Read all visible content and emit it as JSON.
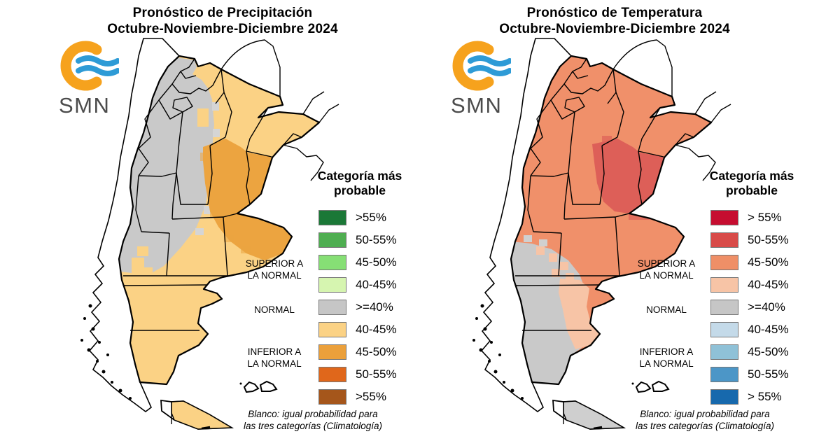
{
  "panels": [
    {
      "title_line1": "Pronóstico de Precipitación",
      "title_line2": "Octubre-Noviembre-Diciembre 2024",
      "logo_text": "SMN",
      "legend": {
        "header_line1": "Categoría más",
        "header_line2": "probable",
        "rows": [
          {
            "label": ">55%",
            "color": "#1b7837"
          },
          {
            "label": "50-55%",
            "color": "#4fae51"
          },
          {
            "label": "45-50%",
            "color": "#86df75"
          },
          {
            "label": "40-45%",
            "color": "#d6f5b0"
          },
          {
            "label": ">=40%",
            "color": "#c6c6c6"
          },
          {
            "label": "40-45%",
            "color": "#fbd285"
          },
          {
            "label": "45-50%",
            "color": "#eba03b"
          },
          {
            "label": "50-55%",
            "color": "#e0671b"
          },
          {
            "label": ">55%",
            "color": "#a5561b"
          }
        ],
        "side_labels": [
          {
            "line1": "SUPERIOR A",
            "line2": "LA NORMAL"
          },
          {
            "line1": "NORMAL",
            "line2": ""
          },
          {
            "line1": "INFERIOR A",
            "line2": "LA NORMAL"
          }
        ]
      },
      "note_line1": "Blanco: igual probabilidad para",
      "note_line2": "las tres categorías (Climatología)",
      "map": {
        "base": "#fbd285",
        "gray": "#c9c9c9",
        "highlight": "#eca440",
        "artifact_gray": "#d5d5d5",
        "coast_patch": "#fbd285",
        "tdf": "#fbd285",
        "water": "#ffffff"
      }
    },
    {
      "title_line1": "Pronóstico de Temperatura",
      "title_line2": "Octubre-Noviembre-Diciembre 2024",
      "logo_text": "SMN",
      "legend": {
        "header_line1": "Categoría más",
        "header_line2": "probable",
        "rows": [
          {
            "label": "> 55%",
            "color": "#c60d30"
          },
          {
            "label": "50-55%",
            "color": "#d84b49"
          },
          {
            "label": "45-50%",
            "color": "#ef8f67"
          },
          {
            "label": "40-45%",
            "color": "#f7c4a6"
          },
          {
            "label": ">=40%",
            "color": "#c6c6c6"
          },
          {
            "label": "40-45%",
            "color": "#c4dae9"
          },
          {
            "label": "45-50%",
            "color": "#8fc1d7"
          },
          {
            "label": "50-55%",
            "color": "#4c96c7"
          },
          {
            "label": "> 55%",
            "color": "#1769ad"
          }
        ],
        "side_labels": [
          {
            "line1": "SUPERIOR A",
            "line2": "LA NORMAL"
          },
          {
            "line1": "NORMAL",
            "line2": ""
          },
          {
            "line1": "INFERIOR A",
            "line2": "LA NORMAL"
          }
        ]
      },
      "note_line1": "Blanco: igual probabilidad para",
      "note_line2": "las tres categorías (Climatología)",
      "map": {
        "base": "#f0906a",
        "gray": "#c9c9c9",
        "highlight": "#dd5f58",
        "artifact_gray": "#d0d0d0",
        "coast_patch": "#f7c4a6",
        "tdf": "#cfcfcf",
        "water": "#ffffff"
      }
    }
  ]
}
